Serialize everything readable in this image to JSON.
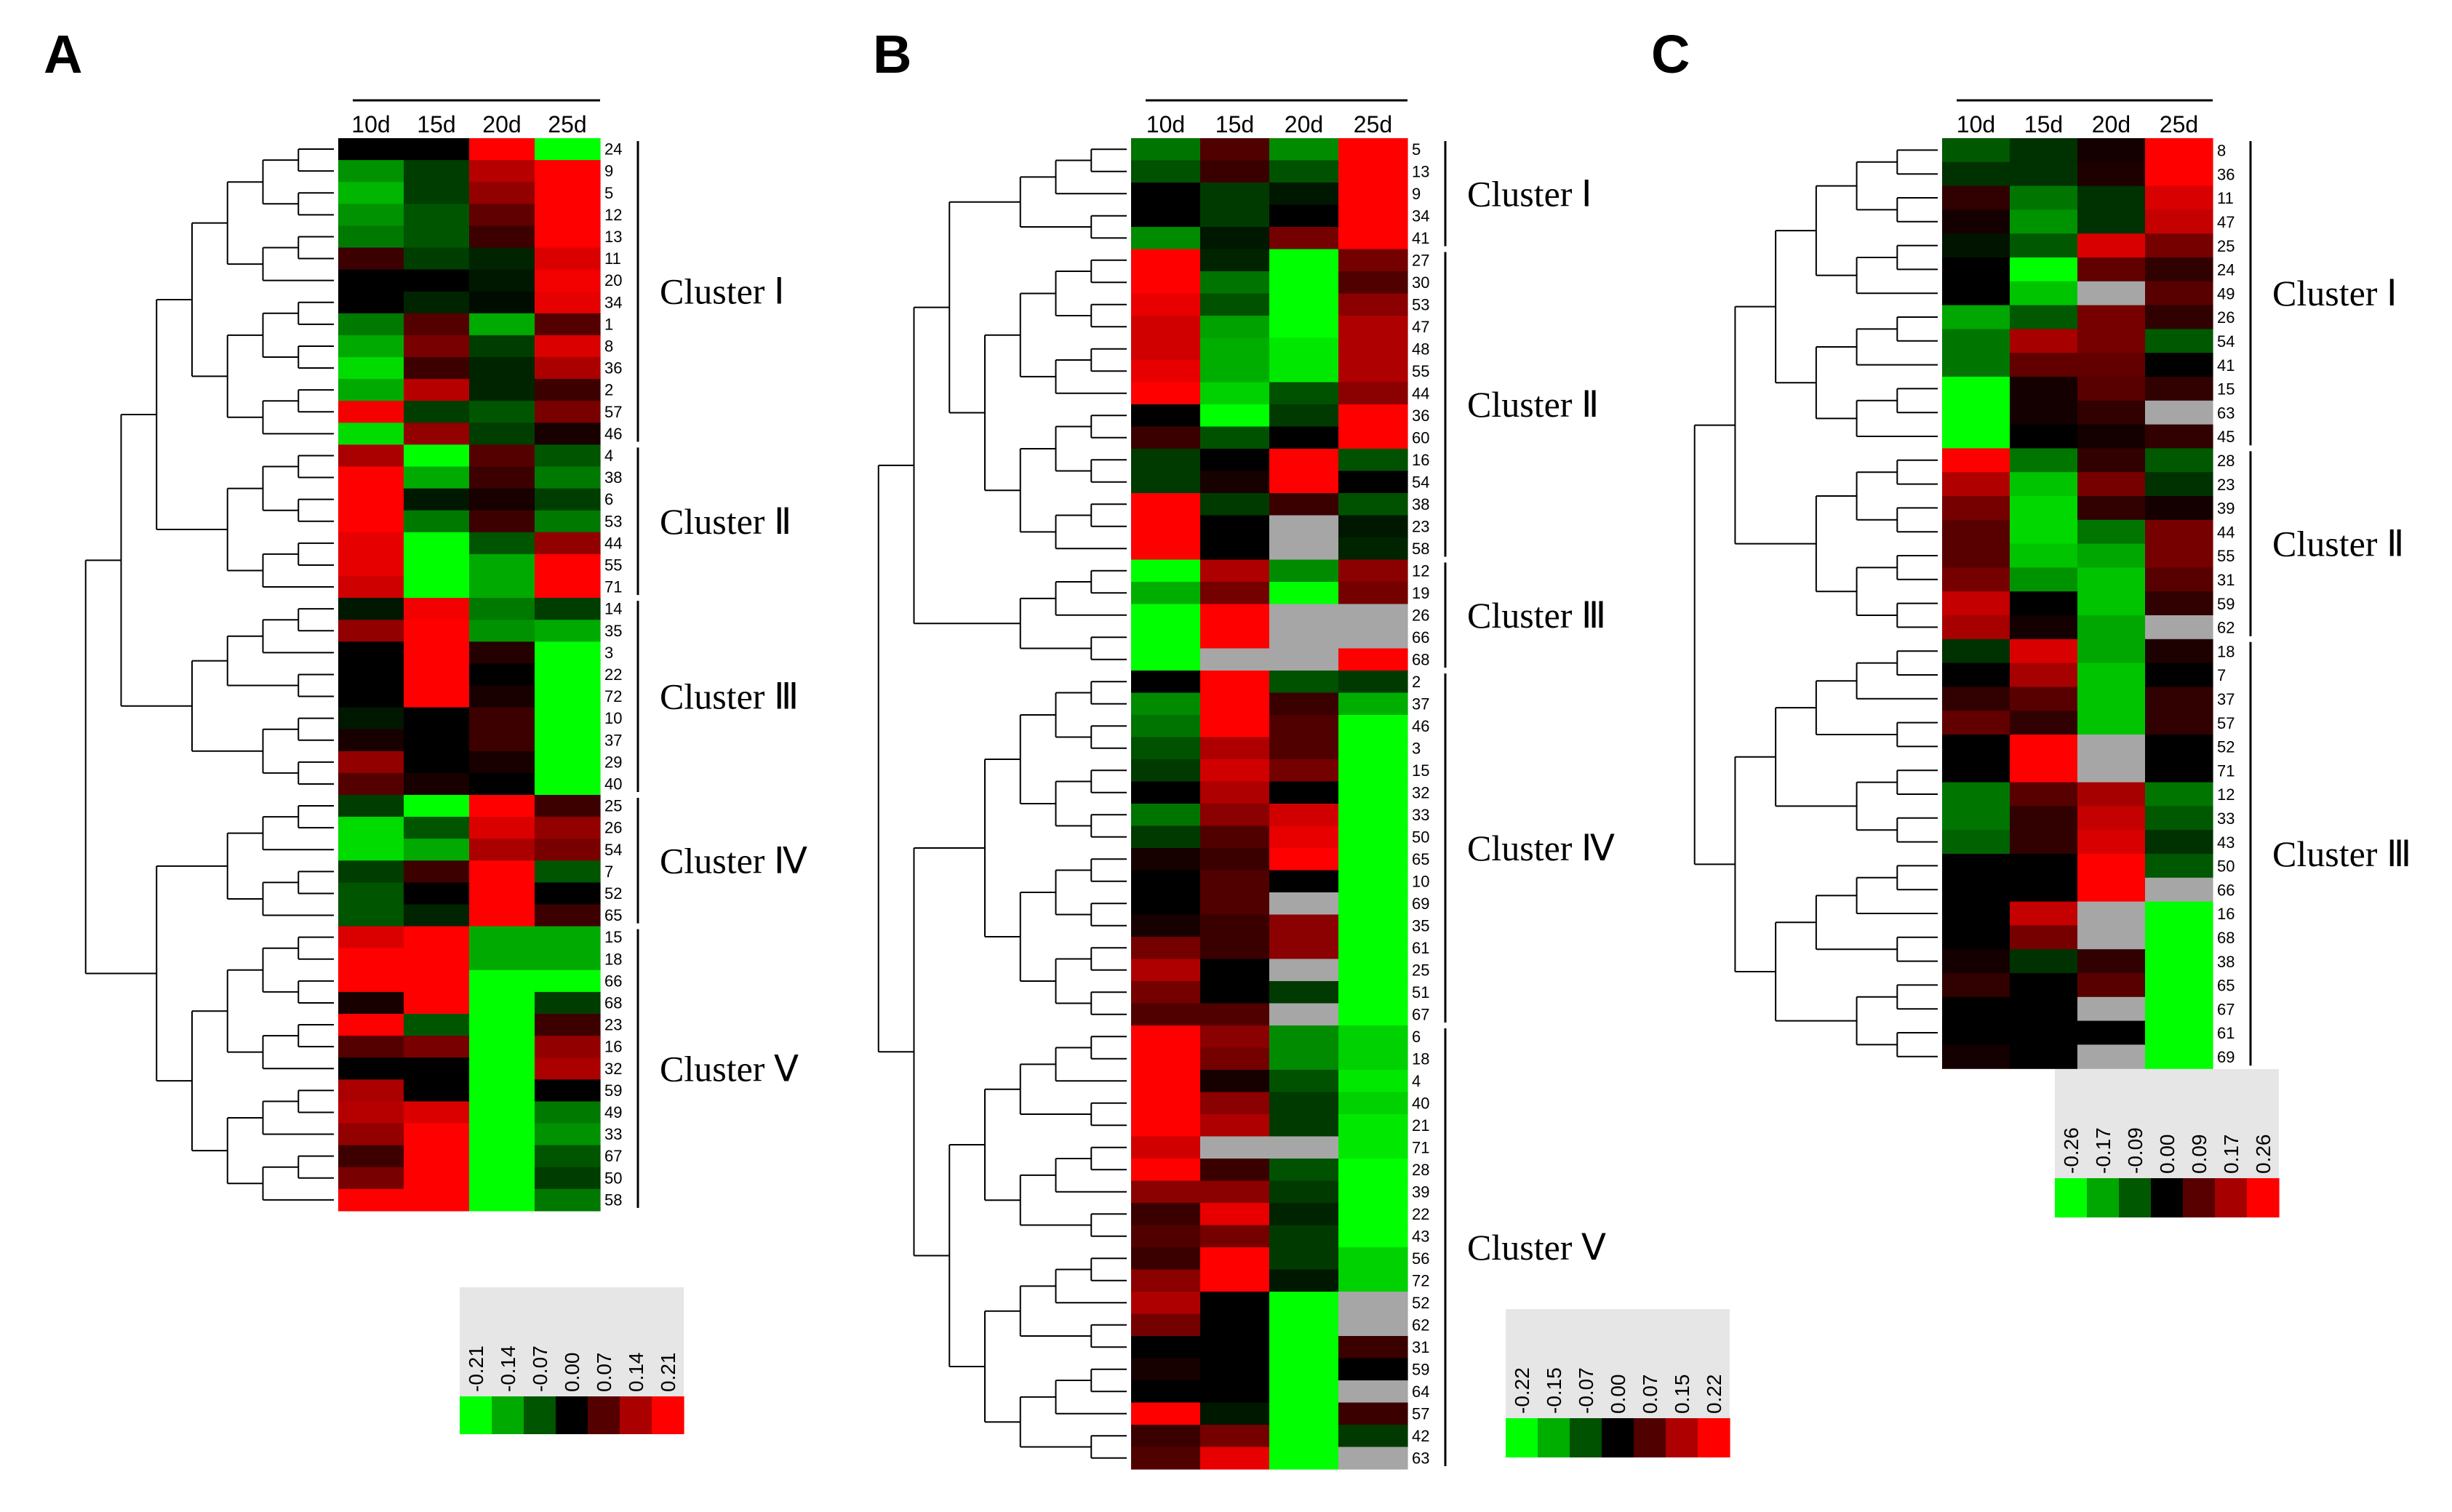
{
  "chart_data": [
    {
      "type": "heatmap",
      "panel": "A",
      "columns": [
        "10d",
        "15d",
        "20d",
        "25d"
      ],
      "rows": [
        "24",
        "9",
        "5",
        "12",
        "13",
        "11",
        "20",
        "34",
        "1",
        "8",
        "36",
        "2",
        "57",
        "46",
        "4",
        "38",
        "6",
        "53",
        "44",
        "55",
        "71",
        "14",
        "35",
        "3",
        "22",
        "72",
        "10",
        "37",
        "29",
        "40",
        "25",
        "26",
        "54",
        "7",
        "52",
        "65",
        "15",
        "18",
        "66",
        "68",
        "23",
        "16",
        "32",
        "59",
        "49",
        "33",
        "67",
        "50",
        "58"
      ],
      "values": [
        [
          0,
          0,
          0.21,
          -0.21
        ],
        [
          -0.12,
          -0.05,
          0.15,
          0.21
        ],
        [
          -0.15,
          -0.05,
          0.12,
          0.21
        ],
        [
          -0.12,
          -0.07,
          0.08,
          0.21
        ],
        [
          -0.1,
          -0.07,
          0.05,
          0.21
        ],
        [
          0.05,
          -0.05,
          -0.03,
          0.18
        ],
        [
          0,
          0,
          -0.02,
          0.2
        ],
        [
          0,
          -0.03,
          -0.01,
          0.19
        ],
        [
          -0.1,
          0.07,
          -0.14,
          0.07
        ],
        [
          -0.14,
          0.1,
          -0.05,
          0.18
        ],
        [
          -0.18,
          0.05,
          -0.03,
          0.14
        ],
        [
          -0.14,
          0.15,
          -0.03,
          0.05
        ],
        [
          0.2,
          -0.05,
          -0.07,
          0.1
        ],
        [
          -0.18,
          0.12,
          -0.05,
          0.02
        ],
        [
          0.14,
          -0.21,
          0.07,
          -0.07
        ],
        [
          0.21,
          -0.14,
          0.05,
          -0.1
        ],
        [
          0.21,
          -0.02,
          0.02,
          -0.05
        ],
        [
          0.21,
          -0.1,
          0.05,
          -0.1
        ],
        [
          0.19,
          -0.21,
          -0.07,
          0.12
        ],
        [
          0.19,
          -0.21,
          -0.14,
          0.21
        ],
        [
          0.17,
          -0.21,
          -0.14,
          0.21
        ],
        [
          -0.02,
          0.2,
          -0.1,
          -0.05
        ],
        [
          0.12,
          0.21,
          -0.12,
          -0.14
        ],
        [
          0,
          0.21,
          0.03,
          -0.21
        ],
        [
          0,
          0.21,
          0,
          -0.21
        ],
        [
          0,
          0.21,
          0.02,
          -0.21
        ],
        [
          -0.02,
          0,
          0.05,
          -0.21
        ],
        [
          0.02,
          0,
          0.05,
          -0.21
        ],
        [
          0.12,
          0,
          0.02,
          -0.21
        ],
        [
          0.07,
          0.02,
          0,
          -0.21
        ],
        [
          -0.05,
          -0.21,
          0.21,
          0.05
        ],
        [
          -0.18,
          -0.07,
          0.18,
          0.12
        ],
        [
          -0.18,
          -0.14,
          0.14,
          0.1
        ],
        [
          -0.05,
          0.05,
          0.21,
          -0.07
        ],
        [
          -0.07,
          0,
          0.21,
          0
        ],
        [
          -0.07,
          -0.03,
          0.21,
          0.05
        ],
        [
          0.18,
          0.21,
          -0.14,
          -0.14
        ],
        [
          0.21,
          0.21,
          -0.14,
          -0.14
        ],
        [
          0.21,
          0.21,
          -0.21,
          -0.21
        ],
        [
          0.02,
          0.21,
          -0.21,
          -0.05
        ],
        [
          0.21,
          -0.07,
          -0.21,
          0.05
        ],
        [
          0.07,
          0.1,
          -0.21,
          0.12
        ],
        [
          0,
          0,
          -0.21,
          0.14
        ],
        [
          0.14,
          0,
          -0.21,
          0
        ],
        [
          0.15,
          0.18,
          -0.21,
          -0.1
        ],
        [
          0.12,
          0.21,
          -0.21,
          -0.12
        ],
        [
          0.05,
          0.21,
          -0.21,
          -0.07
        ],
        [
          0.1,
          0.21,
          -0.21,
          -0.05
        ],
        [
          0.21,
          0.21,
          -0.21,
          -0.1
        ]
      ],
      "clusters": [
        {
          "label": "Cluster Ⅰ",
          "start": 0,
          "end": 13
        },
        {
          "label": "Cluster Ⅱ",
          "start": 14,
          "end": 20
        },
        {
          "label": "Cluster Ⅲ",
          "start": 21,
          "end": 29
        },
        {
          "label": "Cluster Ⅳ",
          "start": 30,
          "end": 35
        },
        {
          "label": "Cluster Ⅴ",
          "start": 36,
          "end": 48
        }
      ],
      "scale_ticks": [
        "-0.21",
        "-0.14",
        "-0.07",
        "0.00",
        "0.07",
        "0.14",
        "0.21"
      ],
      "vmax": 0.21
    },
    {
      "type": "heatmap",
      "panel": "B",
      "columns": [
        "10d",
        "15d",
        "20d",
        "25d"
      ],
      "rows": [
        "5",
        "13",
        "9",
        "34",
        "41",
        "27",
        "30",
        "53",
        "47",
        "48",
        "55",
        "44",
        "36",
        "60",
        "16",
        "54",
        "38",
        "23",
        "58",
        "12",
        "19",
        "26",
        "66",
        "68",
        "2",
        "37",
        "46",
        "3",
        "15",
        "32",
        "33",
        "50",
        "65",
        "10",
        "69",
        "35",
        "61",
        "25",
        "51",
        "67",
        "6",
        "18",
        "4",
        "40",
        "21",
        "71",
        "28",
        "39",
        "22",
        "43",
        "56",
        "72",
        "52",
        "62",
        "31",
        "59",
        "64",
        "57",
        "42",
        "63"
      ],
      "values": [
        [
          -0.1,
          0.07,
          -0.12,
          0.22
        ],
        [
          -0.07,
          0.05,
          -0.07,
          0.22
        ],
        [
          0,
          -0.05,
          -0.02,
          0.22
        ],
        [
          0,
          -0.05,
          0,
          0.22
        ],
        [
          -0.12,
          -0.02,
          0.1,
          0.22
        ],
        [
          0.22,
          -0.03,
          -0.22,
          0.1
        ],
        [
          0.22,
          -0.1,
          -0.22,
          0.07
        ],
        [
          0.2,
          -0.07,
          -0.22,
          0.12
        ],
        [
          0.18,
          -0.14,
          -0.22,
          0.15
        ],
        [
          0.18,
          -0.15,
          -0.2,
          0.15
        ],
        [
          0.2,
          -0.15,
          -0.2,
          0.15
        ],
        [
          0.22,
          -0.18,
          -0.07,
          0.12
        ],
        [
          0,
          -0.22,
          -0.05,
          0.22
        ],
        [
          0.05,
          -0.07,
          0,
          0.22
        ],
        [
          -0.05,
          0,
          0.22,
          -0.07
        ],
        [
          -0.05,
          0.02,
          0.22,
          0
        ],
        [
          0.22,
          -0.05,
          0.05,
          -0.07
        ],
        [
          0.22,
          0,
          null,
          -0.02
        ],
        [
          0.22,
          0,
          null,
          -0.03
        ],
        [
          -0.22,
          0.15,
          -0.12,
          0.12
        ],
        [
          -0.15,
          0.1,
          -0.22,
          0.1
        ],
        [
          -0.22,
          0.22,
          null,
          null
        ],
        [
          -0.22,
          0.22,
          null,
          null
        ],
        [
          -0.22,
          null,
          null,
          0.22
        ],
        [
          0,
          0.22,
          -0.07,
          -0.05
        ],
        [
          -0.12,
          0.22,
          0.05,
          -0.15
        ],
        [
          -0.1,
          0.22,
          0.07,
          -0.22
        ],
        [
          -0.07,
          0.15,
          0.07,
          -0.22
        ],
        [
          -0.05,
          0.18,
          0.1,
          -0.22
        ],
        [
          0,
          0.15,
          0,
          -0.22
        ],
        [
          -0.1,
          0.12,
          0.18,
          -0.22
        ],
        [
          -0.05,
          0.07,
          0.2,
          -0.22
        ],
        [
          0.02,
          0.05,
          0.22,
          -0.22
        ],
        [
          0,
          0.07,
          0,
          -0.22
        ],
        [
          0,
          0.07,
          null,
          -0.22
        ],
        [
          0.02,
          0.05,
          0.12,
          -0.22
        ],
        [
          0.1,
          0.05,
          0.12,
          -0.22
        ],
        [
          0.15,
          0,
          null,
          -0.22
        ],
        [
          0.1,
          0,
          -0.05,
          -0.22
        ],
        [
          0.07,
          0.07,
          null,
          -0.22
        ],
        [
          0.22,
          0.12,
          -0.12,
          -0.18
        ],
        [
          0.22,
          0.1,
          -0.12,
          -0.18
        ],
        [
          0.22,
          0.02,
          -0.07,
          -0.2
        ],
        [
          0.22,
          0.12,
          -0.05,
          -0.18
        ],
        [
          0.22,
          0.15,
          -0.05,
          -0.2
        ],
        [
          0.18,
          null,
          null,
          -0.2
        ],
        [
          0.22,
          0.05,
          -0.07,
          -0.22
        ],
        [
          0.12,
          0.12,
          -0.05,
          -0.22
        ],
        [
          0.05,
          0.2,
          -0.03,
          -0.22
        ],
        [
          0.07,
          0.1,
          -0.05,
          -0.22
        ],
        [
          0.05,
          0.22,
          -0.05,
          -0.18
        ],
        [
          0.12,
          0.22,
          -0.02,
          -0.18
        ],
        [
          0.15,
          0,
          -0.22,
          null
        ],
        [
          0.1,
          0,
          -0.22,
          null
        ],
        [
          0,
          0,
          -0.22,
          0.05
        ],
        [
          0.02,
          0,
          -0.22,
          0
        ],
        [
          0,
          0,
          -0.22,
          null
        ],
        [
          0.22,
          -0.02,
          -0.22,
          0.05
        ],
        [
          0.05,
          0.1,
          -0.22,
          -0.05
        ],
        [
          0.07,
          0.2,
          -0.22,
          null
        ]
      ],
      "clusters": [
        {
          "label": "Cluster Ⅰ",
          "start": 0,
          "end": 4
        },
        {
          "label": "Cluster Ⅱ",
          "start": 5,
          "end": 18
        },
        {
          "label": "Cluster Ⅲ",
          "start": 19,
          "end": 23
        },
        {
          "label": "Cluster Ⅳ",
          "start": 24,
          "end": 39
        },
        {
          "label": "Cluster Ⅴ",
          "start": 40,
          "end": 59
        }
      ],
      "scale_ticks": [
        "-0.22",
        "-0.15",
        "-0.07",
        "0.00",
        "0.07",
        "0.15",
        "0.22"
      ],
      "vmax": 0.22
    },
    {
      "type": "heatmap",
      "panel": "C",
      "columns": [
        "10d",
        "15d",
        "20d",
        "25d"
      ],
      "rows": [
        "8",
        "36",
        "11",
        "47",
        "25",
        "24",
        "49",
        "26",
        "54",
        "41",
        "15",
        "63",
        "45",
        "28",
        "23",
        "39",
        "44",
        "55",
        "31",
        "59",
        "62",
        "18",
        "7",
        "37",
        "57",
        "52",
        "71",
        "12",
        "33",
        "43",
        "50",
        "66",
        "16",
        "68",
        "38",
        "65",
        "67",
        "61",
        "69"
      ],
      "values": [
        [
          -0.09,
          -0.05,
          0.02,
          0.26
        ],
        [
          -0.05,
          -0.05,
          0.03,
          0.26
        ],
        [
          0.05,
          -0.12,
          -0.05,
          0.22
        ],
        [
          0.02,
          -0.15,
          -0.05,
          0.2
        ],
        [
          -0.02,
          -0.09,
          0.22,
          0.12
        ],
        [
          0,
          -0.26,
          0.1,
          0.05
        ],
        [
          0,
          -0.2,
          null,
          0.09
        ],
        [
          -0.17,
          -0.09,
          0.12,
          0.05
        ],
        [
          -0.12,
          0.17,
          0.12,
          -0.09
        ],
        [
          -0.12,
          0.1,
          0.1,
          0
        ],
        [
          -0.26,
          0.02,
          0.09,
          0.05
        ],
        [
          -0.26,
          0.02,
          0.05,
          null
        ],
        [
          -0.26,
          0,
          0.02,
          0.05
        ],
        [
          0.26,
          -0.12,
          0.05,
          -0.09
        ],
        [
          0.18,
          -0.2,
          0.12,
          -0.05
        ],
        [
          0.12,
          -0.22,
          0.05,
          0.02
        ],
        [
          0.09,
          -0.22,
          -0.12,
          0.12
        ],
        [
          0.09,
          -0.2,
          -0.17,
          0.12
        ],
        [
          0.12,
          -0.15,
          -0.2,
          0.09
        ],
        [
          0.2,
          0,
          -0.2,
          0.05
        ],
        [
          0.17,
          0.02,
          -0.17,
          null
        ],
        [
          -0.05,
          0.22,
          -0.17,
          0.03
        ],
        [
          0,
          0.17,
          -0.2,
          0
        ],
        [
          0.05,
          0.09,
          -0.2,
          0.05
        ],
        [
          0.1,
          0.05,
          -0.2,
          0.05
        ],
        [
          0,
          0.26,
          null,
          0
        ],
        [
          0,
          0.26,
          null,
          0
        ],
        [
          -0.12,
          0.09,
          0.17,
          -0.12
        ],
        [
          -0.12,
          0.05,
          0.2,
          -0.09
        ],
        [
          -0.1,
          0.05,
          0.22,
          -0.05
        ],
        [
          0,
          0,
          0.26,
          -0.09
        ],
        [
          0,
          0,
          0.26,
          null
        ],
        [
          0,
          0.2,
          null,
          -0.26
        ],
        [
          0,
          0.12,
          null,
          -0.26
        ],
        [
          0.02,
          -0.05,
          0.05,
          -0.26
        ],
        [
          0.05,
          0,
          0.09,
          -0.26
        ],
        [
          0,
          0,
          null,
          -0.26
        ],
        [
          0,
          0,
          0,
          -0.26
        ],
        [
          0.02,
          0,
          null,
          -0.26
        ]
      ],
      "clusters": [
        {
          "label": "Cluster Ⅰ",
          "start": 0,
          "end": 12
        },
        {
          "label": "Cluster Ⅱ",
          "start": 13,
          "end": 20
        },
        {
          "label": "Cluster Ⅲ",
          "start": 21,
          "end": 38
        }
      ],
      "scale_ticks": [
        "-0.26",
        "-0.17",
        "-0.09",
        "0.00",
        "0.09",
        "0.17",
        "0.26"
      ],
      "vmax": 0.26
    }
  ]
}
